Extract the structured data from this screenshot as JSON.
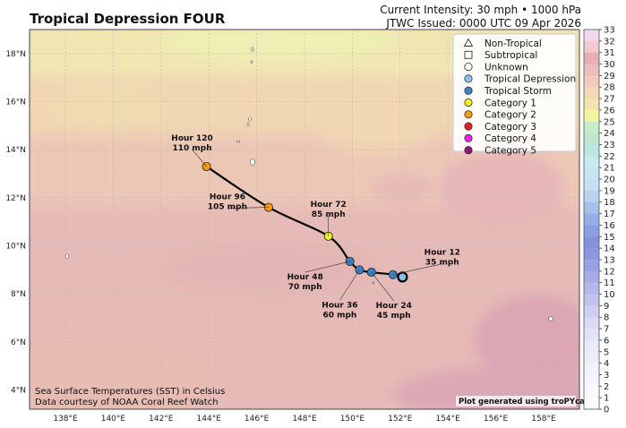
{
  "header": {
    "title": "Tropical Depression FOUR",
    "intensity": "Current Intensity: 30 mph • 1000 hPa",
    "issued": "JTWC Issued: 0000 UTC 09 Apr 2026"
  },
  "map": {
    "lon_range": [
      136.5,
      159.5
    ],
    "lat_range": [
      3.2,
      19.0
    ],
    "lon_ticks": [
      "138°E",
      "140°E",
      "142°E",
      "144°E",
      "146°E",
      "148°E",
      "150°E",
      "152°E",
      "154°E",
      "156°E",
      "158°E"
    ],
    "lat_ticks": [
      "4°N",
      "6°N",
      "8°N",
      "10°N",
      "12°N",
      "14°N",
      "16°N",
      "18°N"
    ],
    "credit_line1": "Sea Surface Temperatures (SST) in Celsius",
    "credit_line2": "Data courtesy of NOAA Coral Reef Watch",
    "generated_by": "Plot generated using troPYcal"
  },
  "track": {
    "current": {
      "lon": 152.1,
      "lat": 8.7,
      "category": "Tropical Depression"
    },
    "forecast_points": [
      {
        "hour": "Hour 12",
        "wind": "35 mph",
        "lon": 151.7,
        "lat": 8.8,
        "category": "Tropical Storm"
      },
      {
        "hour": "Hour 24",
        "wind": "45 mph",
        "lon": 150.8,
        "lat": 8.9,
        "category": "Tropical Storm"
      },
      {
        "hour": "Hour 36",
        "wind": "60 mph",
        "lon": 150.3,
        "lat": 9.0,
        "category": "Tropical Storm"
      },
      {
        "hour": "Hour 48",
        "wind": "70 mph",
        "lon": 149.9,
        "lat": 9.35,
        "category": "Tropical Storm"
      },
      {
        "hour": "Hour 72",
        "wind": "85 mph",
        "lon": 149.0,
        "lat": 10.4,
        "category": "Category 1"
      },
      {
        "hour": "Hour 96",
        "wind": "105 mph",
        "lon": 146.5,
        "lat": 11.6,
        "category": "Category 2"
      },
      {
        "hour": "Hour 120",
        "wind": "110 mph",
        "lon": 143.9,
        "lat": 13.3,
        "category": "Category 2"
      }
    ]
  },
  "legend": {
    "items": [
      {
        "label": "Non-Tropical",
        "symbol": "triangle",
        "color": "#ffffff"
      },
      {
        "label": "Subtropical",
        "symbol": "square",
        "color": "#ffffff"
      },
      {
        "label": "Unknown",
        "symbol": "circle",
        "color": "#ffffff"
      },
      {
        "label": "Tropical Depression",
        "symbol": "circle",
        "color": "#8fbfe8"
      },
      {
        "label": "Tropical Storm",
        "symbol": "circle",
        "color": "#3b80c8"
      },
      {
        "label": "Category 1",
        "symbol": "circle",
        "color": "#f4f01e"
      },
      {
        "label": "Category 2",
        "symbol": "circle",
        "color": "#f39c12"
      },
      {
        "label": "Category 3",
        "symbol": "circle",
        "color": "#e0201e"
      },
      {
        "label": "Category 4",
        "symbol": "circle",
        "color": "#f01ef0"
      },
      {
        "label": "Category 5",
        "symbol": "circle",
        "color": "#8b1a7a"
      }
    ]
  },
  "colorbar": {
    "labels": [
      "33",
      "32",
      "31",
      "30",
      "29",
      "28",
      "27",
      "26",
      "25",
      "24",
      "23",
      "22",
      "21",
      "20",
      "19",
      "18",
      "17",
      "16",
      "15",
      "14",
      "13",
      "12",
      "11",
      "10",
      "9",
      "8",
      "7",
      "6",
      "5",
      "4",
      "3",
      "2",
      "1",
      "0"
    ],
    "colors": [
      "#f0d7ef",
      "#f4c9cf",
      "#e8aeb3",
      "#edbcbc",
      "#f2c9bd",
      "#f2d8b4",
      "#f3e4ad",
      "#f4f4a0",
      "#c9ecc8",
      "#bfe6cf",
      "#bde7e0",
      "#c6eaef",
      "#c9e5f2",
      "#c5dff3",
      "#b9d2f0",
      "#a6c0ec",
      "#95aee7",
      "#8c9fe3",
      "#8593df",
      "#8d97e1",
      "#9aa0e4",
      "#a9abe8",
      "#b6b6eb",
      "#c3c2ee",
      "#cfcef2",
      "#dadaf5",
      "#e2e3f7",
      "#e9e9f9",
      "#eeeefa",
      "#f2f2fb",
      "#f5f5fc",
      "#f8f8fd",
      "#fbfbfe"
    ]
  }
}
